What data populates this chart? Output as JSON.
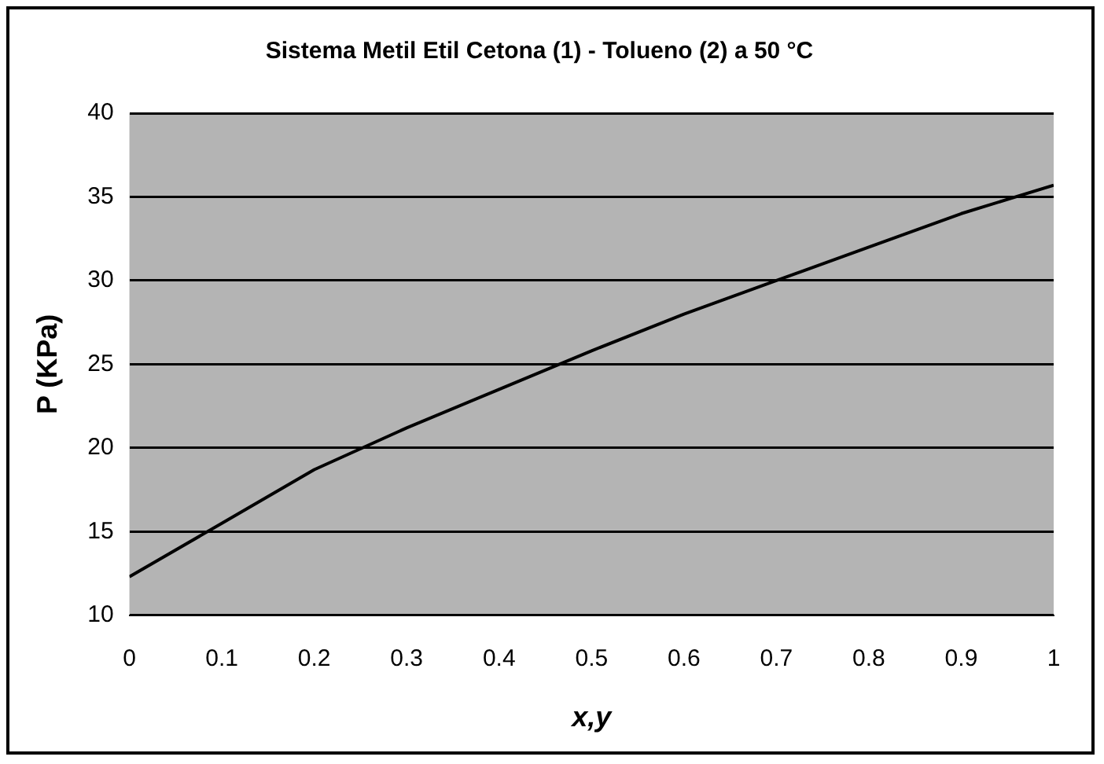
{
  "chart_data": {
    "type": "line",
    "title": "Sistema Metil Etil Cetona (1) - Tolueno (2) a 50 °C",
    "xlabel": "x,y",
    "ylabel": "P (KPa)",
    "x": [
      0,
      0.1,
      0.2,
      0.3,
      0.4,
      0.5,
      0.6,
      0.7,
      0.8,
      0.9,
      1
    ],
    "series": [
      {
        "color": "#000000",
        "values": [
          12.3,
          15.5,
          18.7,
          21.2,
          23.5,
          25.8,
          28,
          30,
          32,
          34,
          35.7
        ]
      }
    ],
    "xlim": [
      0,
      1
    ],
    "xticks": [
      0,
      0.1,
      0.2,
      0.3,
      0.4,
      0.5,
      0.6,
      0.7,
      0.8,
      0.9,
      1
    ],
    "ylim": [
      10,
      40
    ],
    "yticks": [
      10,
      15,
      20,
      25,
      30,
      35,
      40
    ],
    "grid": "y",
    "legend": false,
    "marker": "none",
    "line_style": "solid"
  }
}
